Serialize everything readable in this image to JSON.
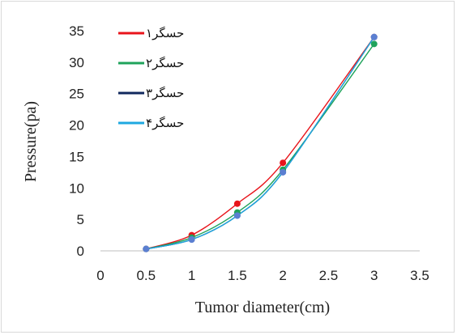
{
  "chart_data": {
    "type": "scatter",
    "title": "",
    "xlabel": "Tumor diameter(cm)",
    "ylabel": "Pressure(pa)",
    "xlim": [
      0,
      3.5
    ],
    "ylim": [
      0,
      35
    ],
    "xticks": [
      "0",
      "0.5",
      "1",
      "1.5",
      "2",
      "2.5",
      "3",
      "3.5"
    ],
    "yticks": [
      "0",
      "5",
      "10",
      "15",
      "20",
      "25",
      "30",
      "35"
    ],
    "grid": false,
    "legend_position": "top-left",
    "series": [
      {
        "name": "حسگر۱",
        "color": "#e8141b",
        "x": [
          0.5,
          1,
          1.5,
          2,
          3
        ],
        "y": [
          0.3,
          2.5,
          7.5,
          14.0,
          34.0
        ]
      },
      {
        "name": "حسگر۲",
        "color": "#1fa35b",
        "x": [
          0.5,
          1,
          1.5,
          2,
          3
        ],
        "y": [
          0.3,
          2.1,
          6.1,
          12.9,
          32.9
        ]
      },
      {
        "name": "حسگر۳",
        "color": "#10285e",
        "x": [
          0.5,
          1,
          1.5,
          2,
          3
        ],
        "y": [
          0.3,
          1.8,
          5.6,
          12.5,
          34.0
        ]
      },
      {
        "name": "حسگر۴",
        "color": "#1ea8e0",
        "x": [
          0.5,
          1,
          1.5,
          2,
          3
        ],
        "y": [
          0.3,
          1.8,
          5.6,
          12.5,
          34.0
        ]
      }
    ],
    "marker_color": "#5b7fd1"
  }
}
